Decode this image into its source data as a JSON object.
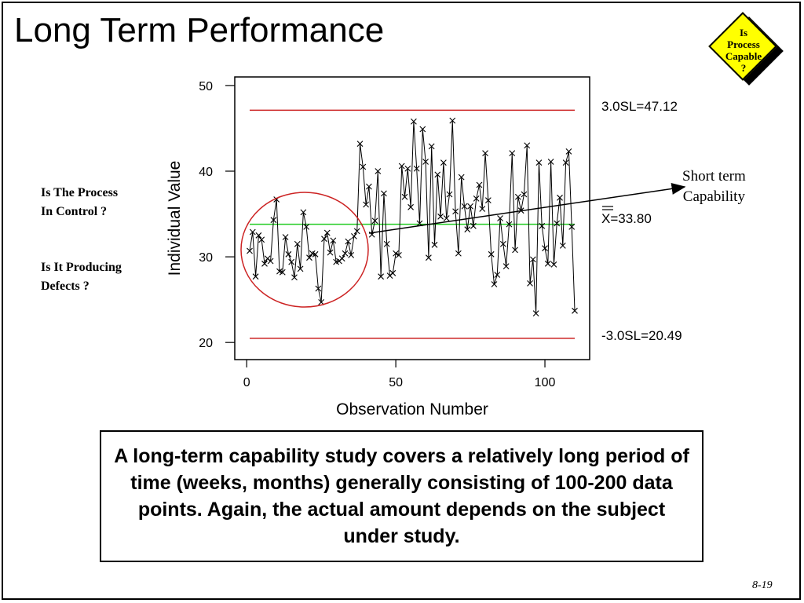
{
  "slide": {
    "title": "Long Term Performance",
    "badge_text": "Is\nProcess\nCapable\n?",
    "question_control": "Is The Process\nIn Control ?",
    "question_defects": "Is It Producing\nDefects ?",
    "short_term_label": "Short term\nCapability",
    "info_text": "A long-term capability study covers a relatively long period of time (weeks, months) generally consisting of 100-200 data points. Again, the actual amount depends on the subject under study.",
    "page_number": "8-19",
    "colors": {
      "limit_line": "#cc2222",
      "center_line": "#22cc22",
      "data_line": "#000000",
      "circle": "#cc2222",
      "badge_fill": "#ffff00"
    }
  },
  "chart_data": {
    "type": "line",
    "xlabel": "Observation Number",
    "ylabel": "Individual Value",
    "xlim": [
      -4,
      115
    ],
    "ylim": [
      18,
      51
    ],
    "x_ticks": [
      0,
      50,
      100
    ],
    "y_ticks": [
      20,
      30,
      40,
      50
    ],
    "marker": "x",
    "limits": {
      "ucl": {
        "label": "3.0SL=47.12",
        "value": 47.12
      },
      "center": {
        "label": "X=33.80",
        "value": 33.8
      },
      "lcl": {
        "label": "-3.0SL=20.49",
        "value": 20.49
      }
    },
    "x": [
      1,
      2,
      3,
      4,
      5,
      6,
      7,
      8,
      9,
      10,
      11,
      12,
      13,
      14,
      15,
      16,
      17,
      18,
      19,
      20,
      21,
      22,
      23,
      24,
      25,
      26,
      27,
      28,
      29,
      30,
      31,
      32,
      33,
      34,
      35,
      36,
      37,
      38,
      39,
      40,
      41,
      42,
      43,
      44,
      45,
      46,
      47,
      48,
      49,
      50,
      51,
      52,
      53,
      54,
      55,
      56,
      57,
      58,
      59,
      60,
      61,
      62,
      63,
      64,
      65,
      66,
      67,
      68,
      69,
      70,
      71,
      72,
      73,
      74,
      75,
      76,
      77,
      78,
      79,
      80,
      81,
      82,
      83,
      84,
      85,
      86,
      87,
      88,
      89,
      90,
      91,
      92,
      93,
      94,
      95,
      96,
      97,
      98,
      99,
      100,
      101,
      102,
      103,
      104,
      105,
      106,
      107,
      108,
      109,
      110
    ],
    "values": [
      30.7,
      32.9,
      27.7,
      32.5,
      32.0,
      29.2,
      29.8,
      29.5,
      34.3,
      36.7,
      28.3,
      28.2,
      32.3,
      30.3,
      29.4,
      27.6,
      31.5,
      28.6,
      35.2,
      33.5,
      29.9,
      30.4,
      30.3,
      26.3,
      24.7,
      32.1,
      32.8,
      30.5,
      31.9,
      29.4,
      29.5,
      29.8,
      30.4,
      31.8,
      30.2,
      32.4,
      33.0,
      43.2,
      40.5,
      36.1,
      38.2,
      32.6,
      34.2,
      40.0,
      27.7,
      37.4,
      31.5,
      27.8,
      28.1,
      30.4,
      30.2,
      40.6,
      37.0,
      40.3,
      35.8,
      45.8,
      40.3,
      33.9,
      44.9,
      41.1,
      29.9,
      42.9,
      31.4,
      39.6,
      34.7,
      41.0,
      34.5,
      37.3,
      45.9,
      35.3,
      30.4,
      39.3,
      35.9,
      33.2,
      35.9,
      33.6,
      36.8,
      38.4,
      35.6,
      42.1,
      36.6,
      30.3,
      26.8,
      27.9,
      34.5,
      31.5,
      28.9,
      33.8,
      42.1,
      30.8,
      37.0,
      35.4,
      37.3,
      43.0,
      26.9,
      29.7,
      23.4,
      41.0,
      33.6,
      31.0,
      29.2,
      41.1,
      29.1,
      33.9,
      36.9,
      31.3,
      41.0,
      42.3,
      33.5,
      23.7
    ]
  }
}
